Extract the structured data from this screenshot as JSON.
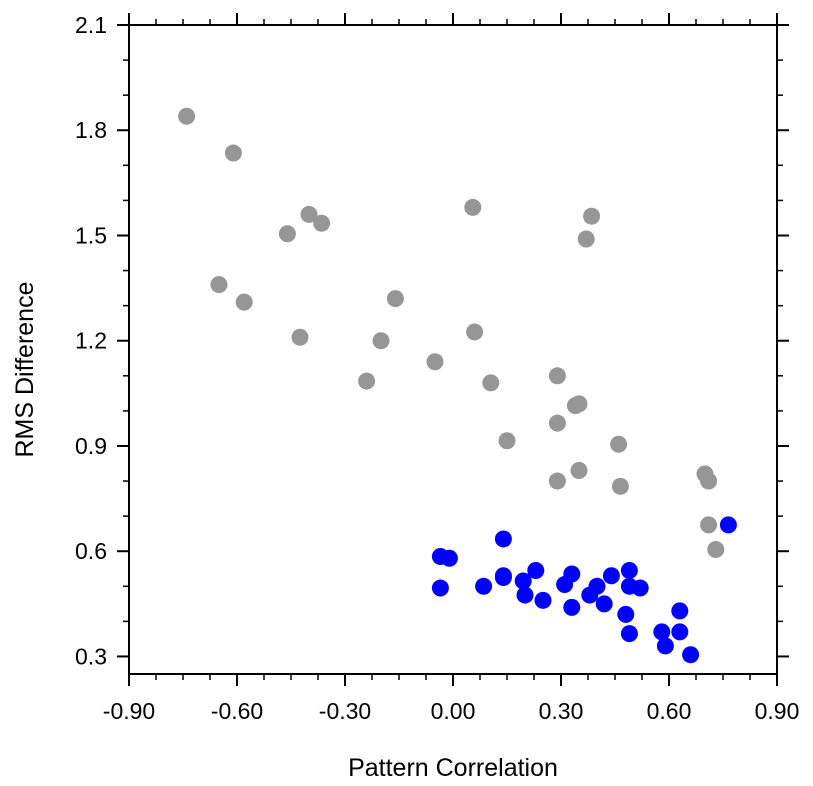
{
  "chart_data": {
    "type": "scatter",
    "title": "",
    "xlabel": "Pattern Correlation",
    "ylabel": "RMS Difference",
    "xlim": [
      -0.9,
      0.9
    ],
    "ylim": [
      0.25,
      2.1
    ],
    "x_ticks": [
      -0.9,
      -0.6,
      -0.3,
      0.0,
      0.3,
      0.6,
      0.9
    ],
    "x_tick_labels": [
      "-0.90",
      "-0.60",
      "-0.30",
      "0.00",
      "0.30",
      "0.60",
      "0.90"
    ],
    "y_ticks": [
      0.3,
      0.6,
      0.9,
      1.2,
      1.5,
      1.8,
      2.1
    ],
    "y_tick_labels": [
      "0.3",
      "0.6",
      "0.9",
      "1.2",
      "1.5",
      "1.8",
      "2.1"
    ],
    "grid": false,
    "series": [
      {
        "color": "#969696",
        "points": [
          [
            -0.74,
            1.84
          ],
          [
            -0.61,
            1.735
          ],
          [
            -0.65,
            1.36
          ],
          [
            -0.58,
            1.31
          ],
          [
            -0.4,
            1.56
          ],
          [
            -0.365,
            1.535
          ],
          [
            -0.46,
            1.505
          ],
          [
            -0.425,
            1.21
          ],
          [
            -0.24,
            1.085
          ],
          [
            -0.2,
            1.2
          ],
          [
            -0.16,
            1.32
          ],
          [
            -0.05,
            1.14
          ],
          [
            0.055,
            1.58
          ],
          [
            0.06,
            1.225
          ],
          [
            0.105,
            1.08
          ],
          [
            0.15,
            0.915
          ],
          [
            0.29,
            1.1
          ],
          [
            0.29,
            0.965
          ],
          [
            0.29,
            0.8
          ],
          [
            0.34,
            1.015
          ],
          [
            0.35,
            1.02
          ],
          [
            0.35,
            0.83
          ],
          [
            0.37,
            1.49
          ],
          [
            0.385,
            1.555
          ],
          [
            0.46,
            0.905
          ],
          [
            0.465,
            0.785
          ],
          [
            0.7,
            0.82
          ],
          [
            0.71,
            0.8
          ],
          [
            0.71,
            0.675
          ],
          [
            0.73,
            0.605
          ]
        ]
      },
      {
        "color": "#0000ff",
        "points": [
          [
            -0.035,
            0.585
          ],
          [
            -0.01,
            0.58
          ],
          [
            -0.035,
            0.495
          ],
          [
            0.085,
            0.5
          ],
          [
            0.14,
            0.525
          ],
          [
            0.14,
            0.53
          ],
          [
            0.14,
            0.635
          ],
          [
            0.195,
            0.515
          ],
          [
            0.2,
            0.475
          ],
          [
            0.23,
            0.545
          ],
          [
            0.25,
            0.46
          ],
          [
            0.31,
            0.505
          ],
          [
            0.33,
            0.535
          ],
          [
            0.33,
            0.44
          ],
          [
            0.38,
            0.475
          ],
          [
            0.4,
            0.5
          ],
          [
            0.42,
            0.45
          ],
          [
            0.44,
            0.53
          ],
          [
            0.49,
            0.545
          ],
          [
            0.49,
            0.5
          ],
          [
            0.48,
            0.42
          ],
          [
            0.49,
            0.365
          ],
          [
            0.52,
            0.495
          ],
          [
            0.58,
            0.37
          ],
          [
            0.59,
            0.33
          ],
          [
            0.63,
            0.43
          ],
          [
            0.63,
            0.37
          ],
          [
            0.66,
            0.305
          ],
          [
            0.765,
            0.675
          ]
        ]
      }
    ]
  }
}
